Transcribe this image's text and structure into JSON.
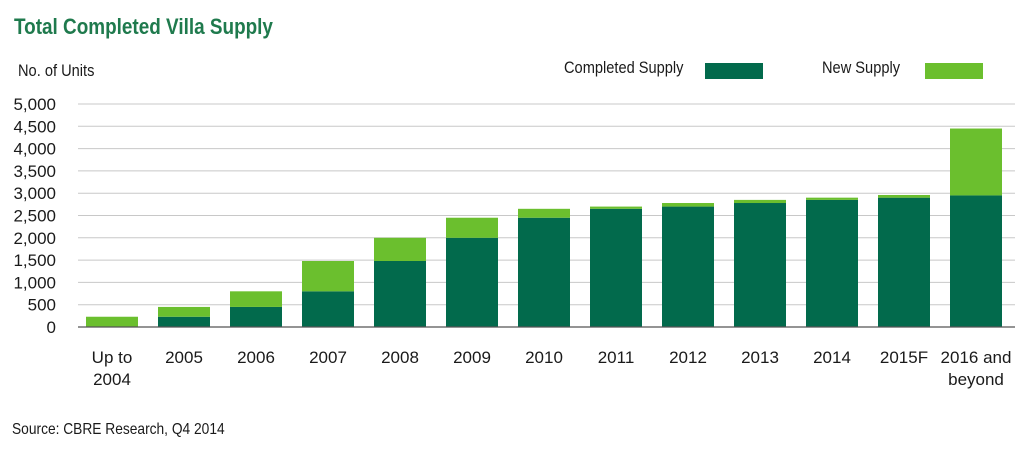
{
  "chart_data": {
    "type": "bar",
    "stacked": true,
    "title": "Total Completed Villa Supply",
    "ylabel": "No. of Units",
    "xlabel": "",
    "ylim": [
      0,
      5000
    ],
    "yticks": [
      0,
      500,
      1000,
      1500,
      2000,
      2500,
      3000,
      3500,
      4000,
      4500,
      5000
    ],
    "ytick_labels": [
      "0",
      "500",
      "1,000",
      "1,500",
      "2,000",
      "2,500",
      "3,000",
      "3,500",
      "4,000",
      "4,500",
      "5,000"
    ],
    "categories": [
      [
        "Up to",
        "2004"
      ],
      [
        "2005"
      ],
      [
        "2006"
      ],
      [
        "2007"
      ],
      [
        "2008"
      ],
      [
        "2009"
      ],
      [
        "2010"
      ],
      [
        "2011"
      ],
      [
        "2012"
      ],
      [
        "2013"
      ],
      [
        "2014"
      ],
      [
        "2015F"
      ],
      [
        "2016 and",
        "beyond"
      ]
    ],
    "series": [
      {
        "name": "Completed Supply",
        "color": "#026a4c",
        "values": [
          0,
          230,
          450,
          800,
          1480,
          2000,
          2450,
          2650,
          2700,
          2780,
          2850,
          2900,
          2950
        ]
      },
      {
        "name": "New Supply",
        "color": "#6bbf2e",
        "values": [
          230,
          220,
          350,
          680,
          520,
          450,
          200,
          50,
          80,
          70,
          50,
          60,
          1500
        ]
      }
    ],
    "legend_position": "top-right",
    "grid": true
  },
  "source": "Source: CBRE Research, Q4 2014"
}
